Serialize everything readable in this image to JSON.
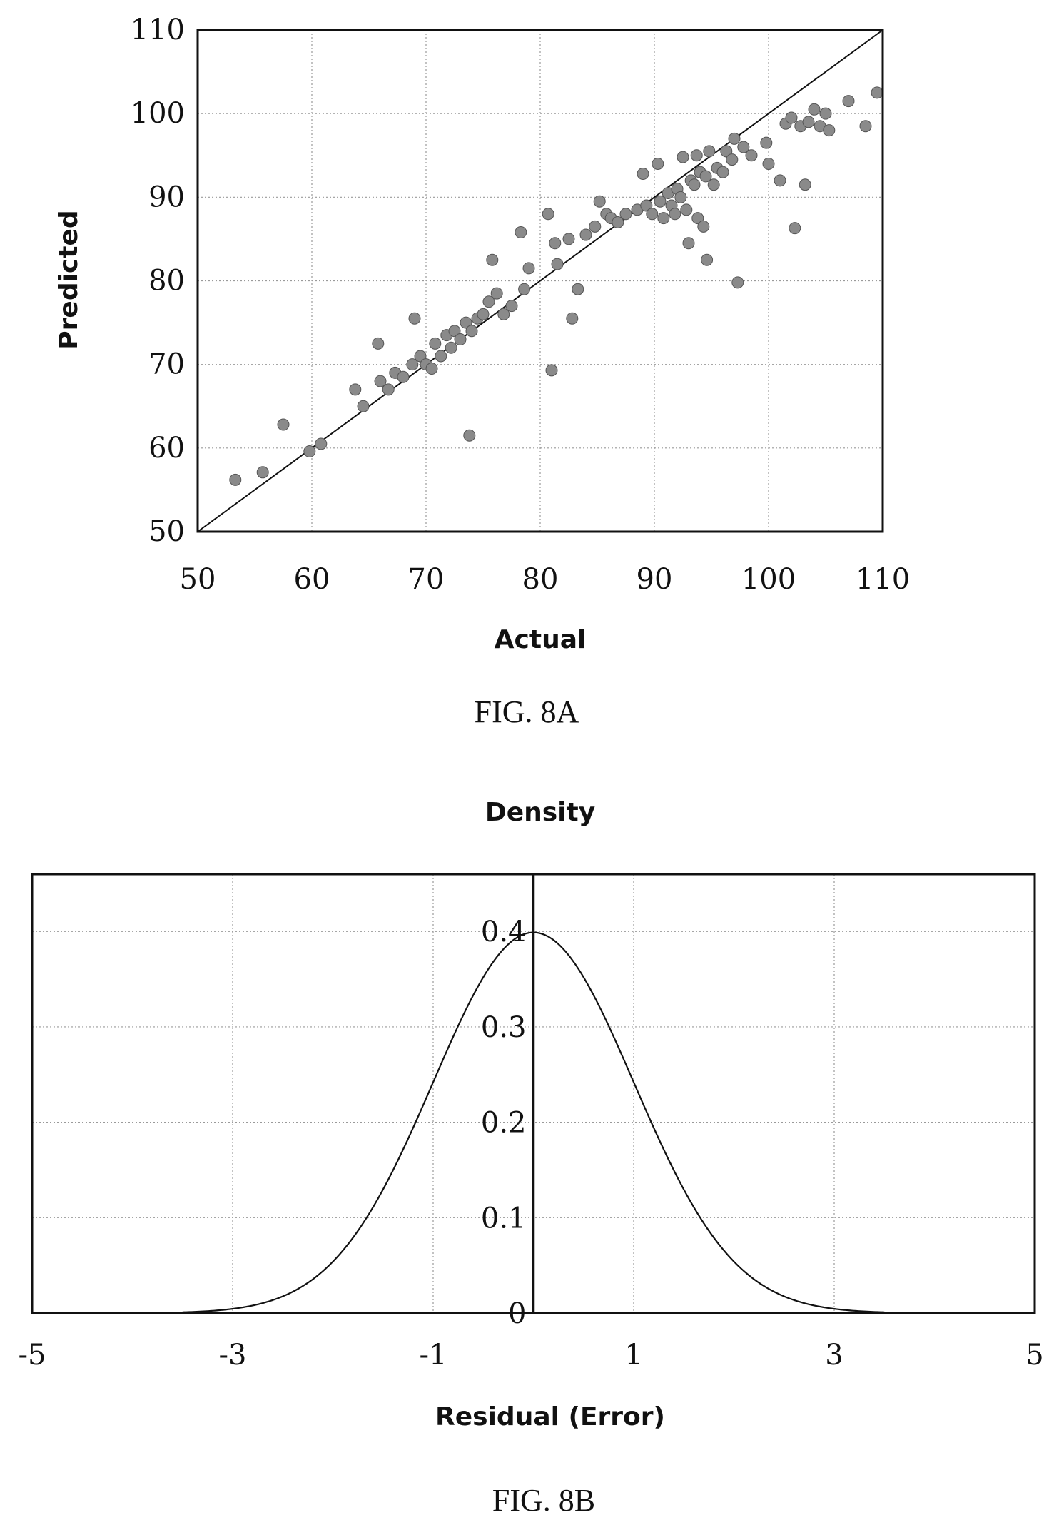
{
  "chart_data": [
    {
      "type": "scatter",
      "xlabel": "Actual",
      "ylabel": "Predicted",
      "xlim": [
        50,
        110
      ],
      "ylim": [
        50,
        110
      ],
      "x_ticks": [
        "50",
        "60",
        "70",
        "80",
        "90",
        "100",
        "110"
      ],
      "y_ticks": [
        "50",
        "60",
        "70",
        "80",
        "90",
        "100",
        "110"
      ],
      "grid": true,
      "reference_line": {
        "from": [
          50,
          50
        ],
        "to": [
          110,
          110
        ]
      },
      "points": [
        [
          53.3,
          56.2
        ],
        [
          55.7,
          57.1
        ],
        [
          57.5,
          62.8
        ],
        [
          59.8,
          59.6
        ],
        [
          60.8,
          60.5
        ],
        [
          63.8,
          67.0
        ],
        [
          64.5,
          65.0
        ],
        [
          65.8,
          72.5
        ],
        [
          66.0,
          68.0
        ],
        [
          66.7,
          67.0
        ],
        [
          67.3,
          69.0
        ],
        [
          68.0,
          68.5
        ],
        [
          68.8,
          70.0
        ],
        [
          69.0,
          75.5
        ],
        [
          69.5,
          71.0
        ],
        [
          70.0,
          70.0
        ],
        [
          70.5,
          69.5
        ],
        [
          70.8,
          72.5
        ],
        [
          71.3,
          71.0
        ],
        [
          71.8,
          73.5
        ],
        [
          72.2,
          72.0
        ],
        [
          72.5,
          74.0
        ],
        [
          73.0,
          73.0
        ],
        [
          73.5,
          75.0
        ],
        [
          73.8,
          61.5
        ],
        [
          74.0,
          74.0
        ],
        [
          74.5,
          75.5
        ],
        [
          75.0,
          76.0
        ],
        [
          75.5,
          77.5
        ],
        [
          75.8,
          82.5
        ],
        [
          76.2,
          78.5
        ],
        [
          76.8,
          76.0
        ],
        [
          77.5,
          77.0
        ],
        [
          78.3,
          85.8
        ],
        [
          78.6,
          79.0
        ],
        [
          79.0,
          81.5
        ],
        [
          80.7,
          88.0
        ],
        [
          81.0,
          69.3
        ],
        [
          81.3,
          84.5
        ],
        [
          81.5,
          82.0
        ],
        [
          82.5,
          85.0
        ],
        [
          82.8,
          75.5
        ],
        [
          83.3,
          79.0
        ],
        [
          84.0,
          85.5
        ],
        [
          84.8,
          86.5
        ],
        [
          85.2,
          89.5
        ],
        [
          85.8,
          88.0
        ],
        [
          86.2,
          87.5
        ],
        [
          86.8,
          87.0
        ],
        [
          87.5,
          88.0
        ],
        [
          88.5,
          88.5
        ],
        [
          89.0,
          92.8
        ],
        [
          89.3,
          89.0
        ],
        [
          89.8,
          88.0
        ],
        [
          90.3,
          94.0
        ],
        [
          90.5,
          89.5
        ],
        [
          90.8,
          87.5
        ],
        [
          91.2,
          90.5
        ],
        [
          91.5,
          89.0
        ],
        [
          91.8,
          88.0
        ],
        [
          92.0,
          91.0
        ],
        [
          92.3,
          90.0
        ],
        [
          92.5,
          94.8
        ],
        [
          92.8,
          88.5
        ],
        [
          93.0,
          84.5
        ],
        [
          93.2,
          92.0
        ],
        [
          93.5,
          91.5
        ],
        [
          93.7,
          95.0
        ],
        [
          93.8,
          87.5
        ],
        [
          94.0,
          93.0
        ],
        [
          94.3,
          86.5
        ],
        [
          94.5,
          92.5
        ],
        [
          94.6,
          82.5
        ],
        [
          94.8,
          95.5
        ],
        [
          95.2,
          91.5
        ],
        [
          95.5,
          93.5
        ],
        [
          96.0,
          93.0
        ],
        [
          96.3,
          95.5
        ],
        [
          96.8,
          94.5
        ],
        [
          97.0,
          97.0
        ],
        [
          97.3,
          79.8
        ],
        [
          97.8,
          96.0
        ],
        [
          98.5,
          95.0
        ],
        [
          99.8,
          96.5
        ],
        [
          100.0,
          94.0
        ],
        [
          101.0,
          92.0
        ],
        [
          101.5,
          98.8
        ],
        [
          102.0,
          99.5
        ],
        [
          102.3,
          86.3
        ],
        [
          102.8,
          98.5
        ],
        [
          103.2,
          91.5
        ],
        [
          103.5,
          99.0
        ],
        [
          104.0,
          100.5
        ],
        [
          104.5,
          98.5
        ],
        [
          105.0,
          100.0
        ],
        [
          105.3,
          98.0
        ],
        [
          107.0,
          101.5
        ],
        [
          108.5,
          98.5
        ],
        [
          109.5,
          102.5
        ]
      ]
    },
    {
      "type": "line",
      "title": "Density",
      "xlabel": "Residual (Error)",
      "xlim": [
        -5,
        5
      ],
      "ylim": [
        0,
        0.4
      ],
      "x_ticks": [
        "-5",
        "-3",
        "-1",
        "1",
        "3",
        "5"
      ],
      "y_ticks": [
        "0",
        "0.1",
        "0.2",
        "0.3",
        "0.4"
      ],
      "grid": true,
      "series": [
        {
          "distribution": "normal",
          "mean": 0,
          "sd": 1
        }
      ]
    }
  ],
  "captions": {
    "fig_a": "FIG. 8A",
    "fig_b": "FIG. 8B"
  }
}
